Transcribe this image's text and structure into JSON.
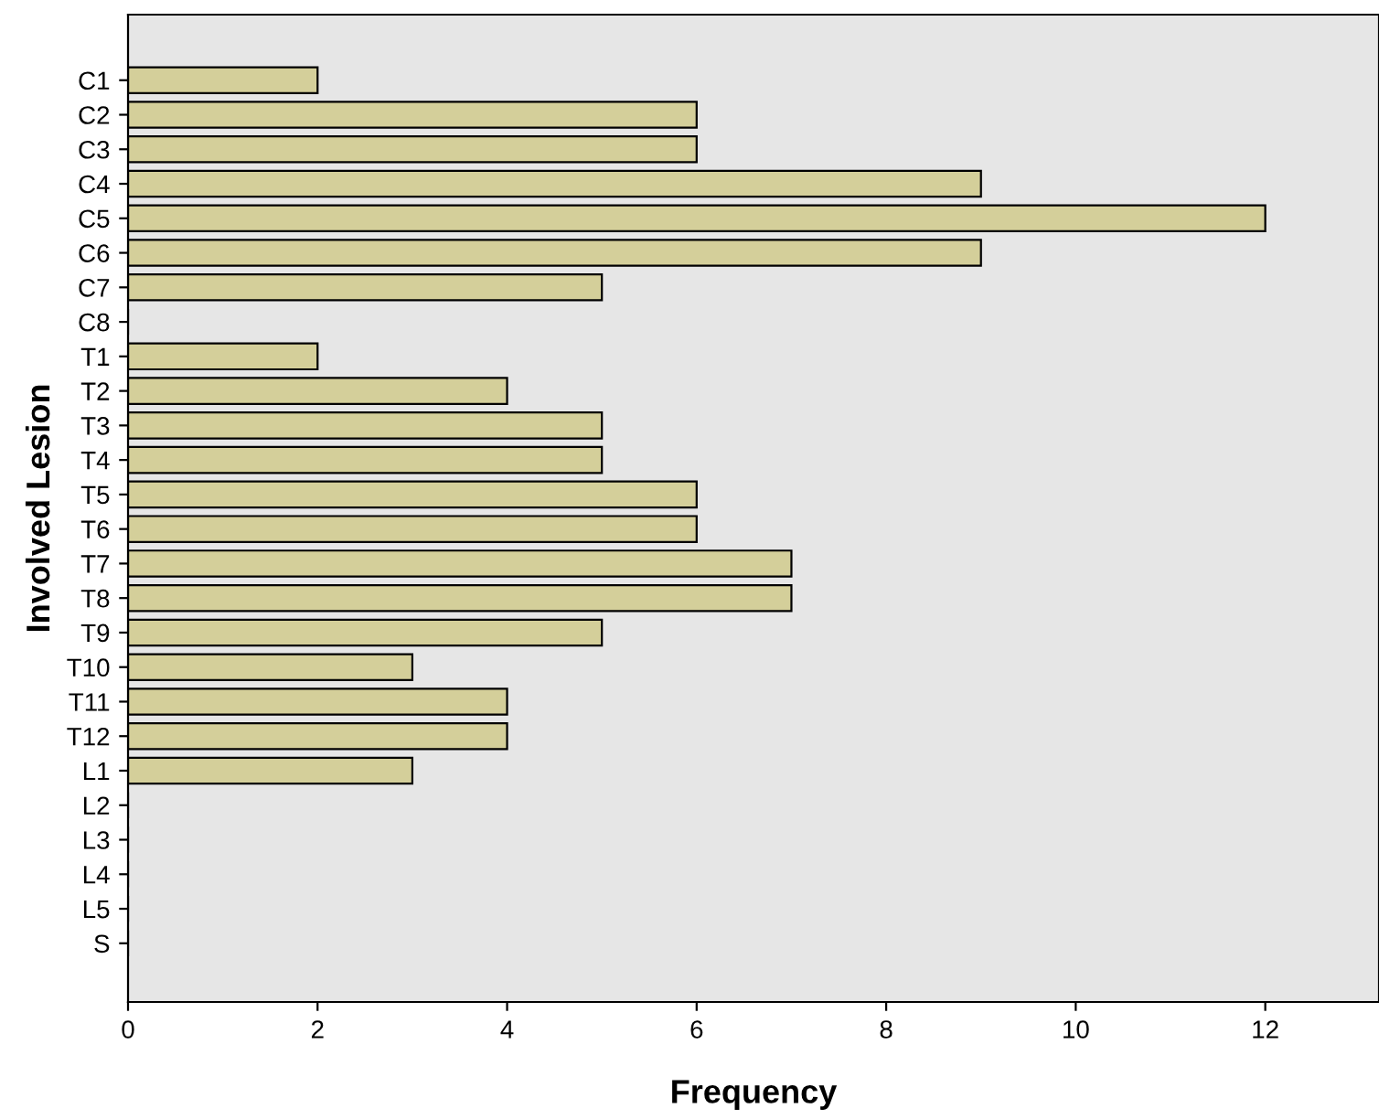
{
  "chart_data": {
    "type": "bar",
    "orientation": "horizontal",
    "xlabel": "Frequency",
    "ylabel": "Involved Lesion",
    "categories": [
      "C1",
      "C2",
      "C3",
      "C4",
      "C5",
      "C6",
      "C7",
      "C8",
      "T1",
      "T2",
      "T3",
      "T4",
      "T5",
      "T6",
      "T7",
      "T8",
      "T9",
      "T10",
      "T11",
      "T12",
      "L1",
      "L2",
      "L3",
      "L4",
      "L5",
      "S"
    ],
    "values": [
      2,
      6,
      6,
      9,
      12,
      9,
      5,
      0,
      2,
      4,
      5,
      5,
      6,
      6,
      7,
      7,
      5,
      3,
      4,
      4,
      3,
      0,
      0,
      0,
      0,
      0
    ],
    "color": "#d4cf9a",
    "xlim": [
      0,
      13.2
    ],
    "xticks": [
      0,
      2,
      4,
      6,
      8,
      10,
      12
    ],
    "grid": false,
    "legend": false
  }
}
